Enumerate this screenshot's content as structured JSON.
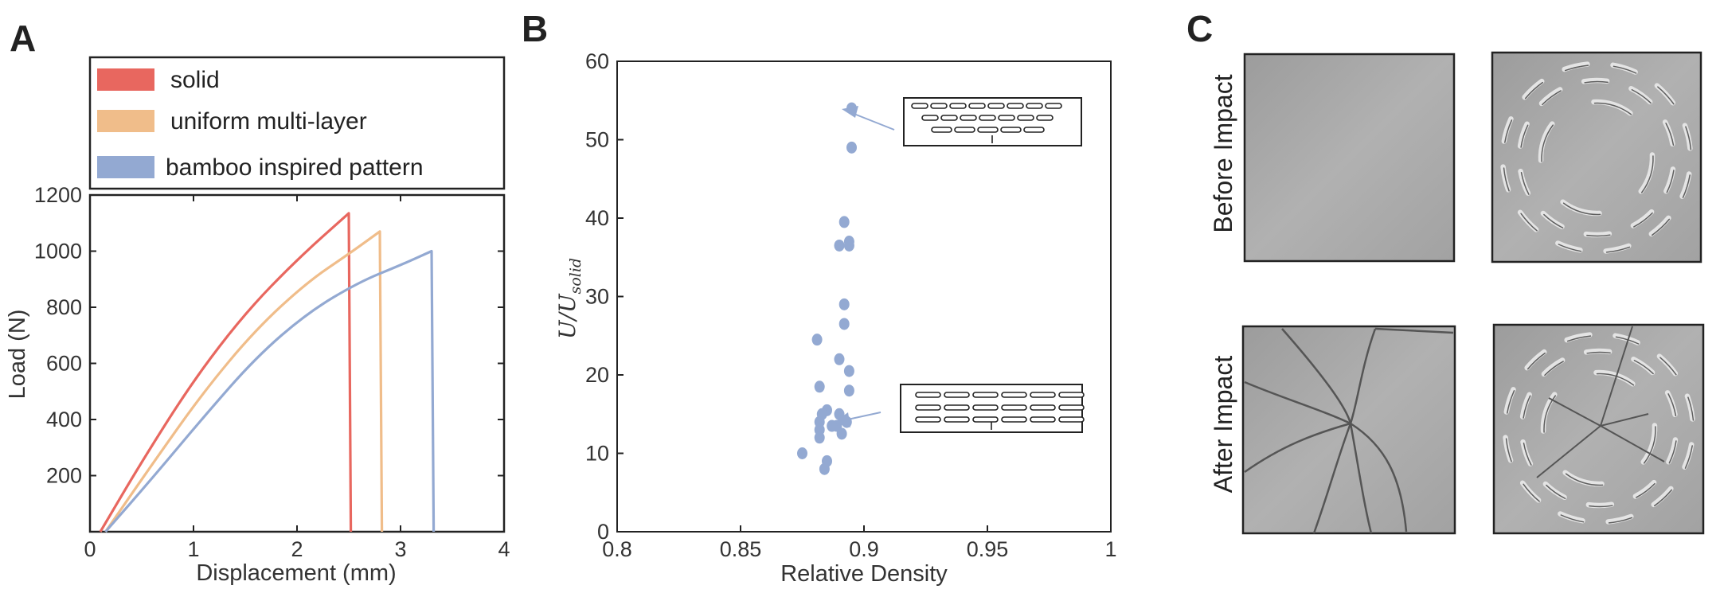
{
  "panels": {
    "a_letter": "A",
    "b_letter": "B",
    "c_letter": "C"
  },
  "chart_data": [
    {
      "type": "line",
      "xlabel": "Displacement (mm)",
      "ylabel": "Load (N)",
      "xlim": [
        0,
        4
      ],
      "ylim": [
        0,
        1200
      ],
      "xticks": [
        "0",
        "1",
        "2",
        "3",
        "4"
      ],
      "yticks": [
        "200",
        "400",
        "600",
        "800",
        "1000",
        "1200"
      ],
      "grid": false,
      "legend_position": "top",
      "series": [
        {
          "name": "solid",
          "color": "#e8675f",
          "points": [
            [
              0.1,
              0
            ],
            [
              0.5,
              250
            ],
            [
              1.0,
              540
            ],
            [
              1.5,
              780
            ],
            [
              2.0,
              970
            ],
            [
              2.5,
              1135
            ],
            [
              2.52,
              0
            ]
          ]
        },
        {
          "name": "uniform multi-layer",
          "color": "#f0bd8a",
          "points": [
            [
              0.15,
              0
            ],
            [
              0.6,
              240
            ],
            [
              1.1,
              500
            ],
            [
              1.6,
              720
            ],
            [
              2.1,
              890
            ],
            [
              2.5,
              990
            ],
            [
              2.8,
              1070
            ],
            [
              2.82,
              0
            ]
          ]
        },
        {
          "name": "bamboo inspired pattern",
          "color": "#93a9d2",
          "points": [
            [
              0.15,
              0
            ],
            [
              0.6,
              190
            ],
            [
              1.1,
              410
            ],
            [
              1.6,
              620
            ],
            [
              2.1,
              780
            ],
            [
              2.6,
              890
            ],
            [
              3.0,
              950
            ],
            [
              3.3,
              1000
            ],
            [
              3.32,
              0
            ]
          ]
        }
      ]
    },
    {
      "type": "scatter",
      "xlabel": "Relative Density",
      "ylabel_main": "U",
      "ylabel_sep": "/",
      "ylabel_denom": "U",
      "ylabel_sub": "solid",
      "xlim": [
        0.8,
        1.0
      ],
      "ylim": [
        0,
        60
      ],
      "xticks": [
        "0.8",
        "0.85",
        "0.9",
        "0.95",
        "1"
      ],
      "yticks": [
        "0",
        "10",
        "20",
        "30",
        "40",
        "50",
        "60"
      ],
      "grid": false,
      "color": "#93a9d2",
      "points": [
        [
          0.895,
          54
        ],
        [
          0.895,
          49
        ],
        [
          0.892,
          39.5
        ],
        [
          0.894,
          37
        ],
        [
          0.89,
          36.5
        ],
        [
          0.894,
          36.5
        ],
        [
          0.892,
          29
        ],
        [
          0.892,
          26.5
        ],
        [
          0.881,
          24.5
        ],
        [
          0.89,
          22
        ],
        [
          0.894,
          20.5
        ],
        [
          0.894,
          18
        ],
        [
          0.882,
          18.5
        ],
        [
          0.885,
          15.5
        ],
        [
          0.89,
          15
        ],
        [
          0.883,
          15
        ],
        [
          0.893,
          14
        ],
        [
          0.882,
          14
        ],
        [
          0.889,
          13.5
        ],
        [
          0.882,
          13
        ],
        [
          0.887,
          13.5
        ],
        [
          0.891,
          12.5
        ],
        [
          0.882,
          12
        ],
        [
          0.875,
          10
        ],
        [
          0.885,
          9
        ],
        [
          0.884,
          8
        ]
      ]
    }
  ],
  "photos": {
    "row_labels": [
      "Before Impact",
      "After Impact"
    ]
  }
}
